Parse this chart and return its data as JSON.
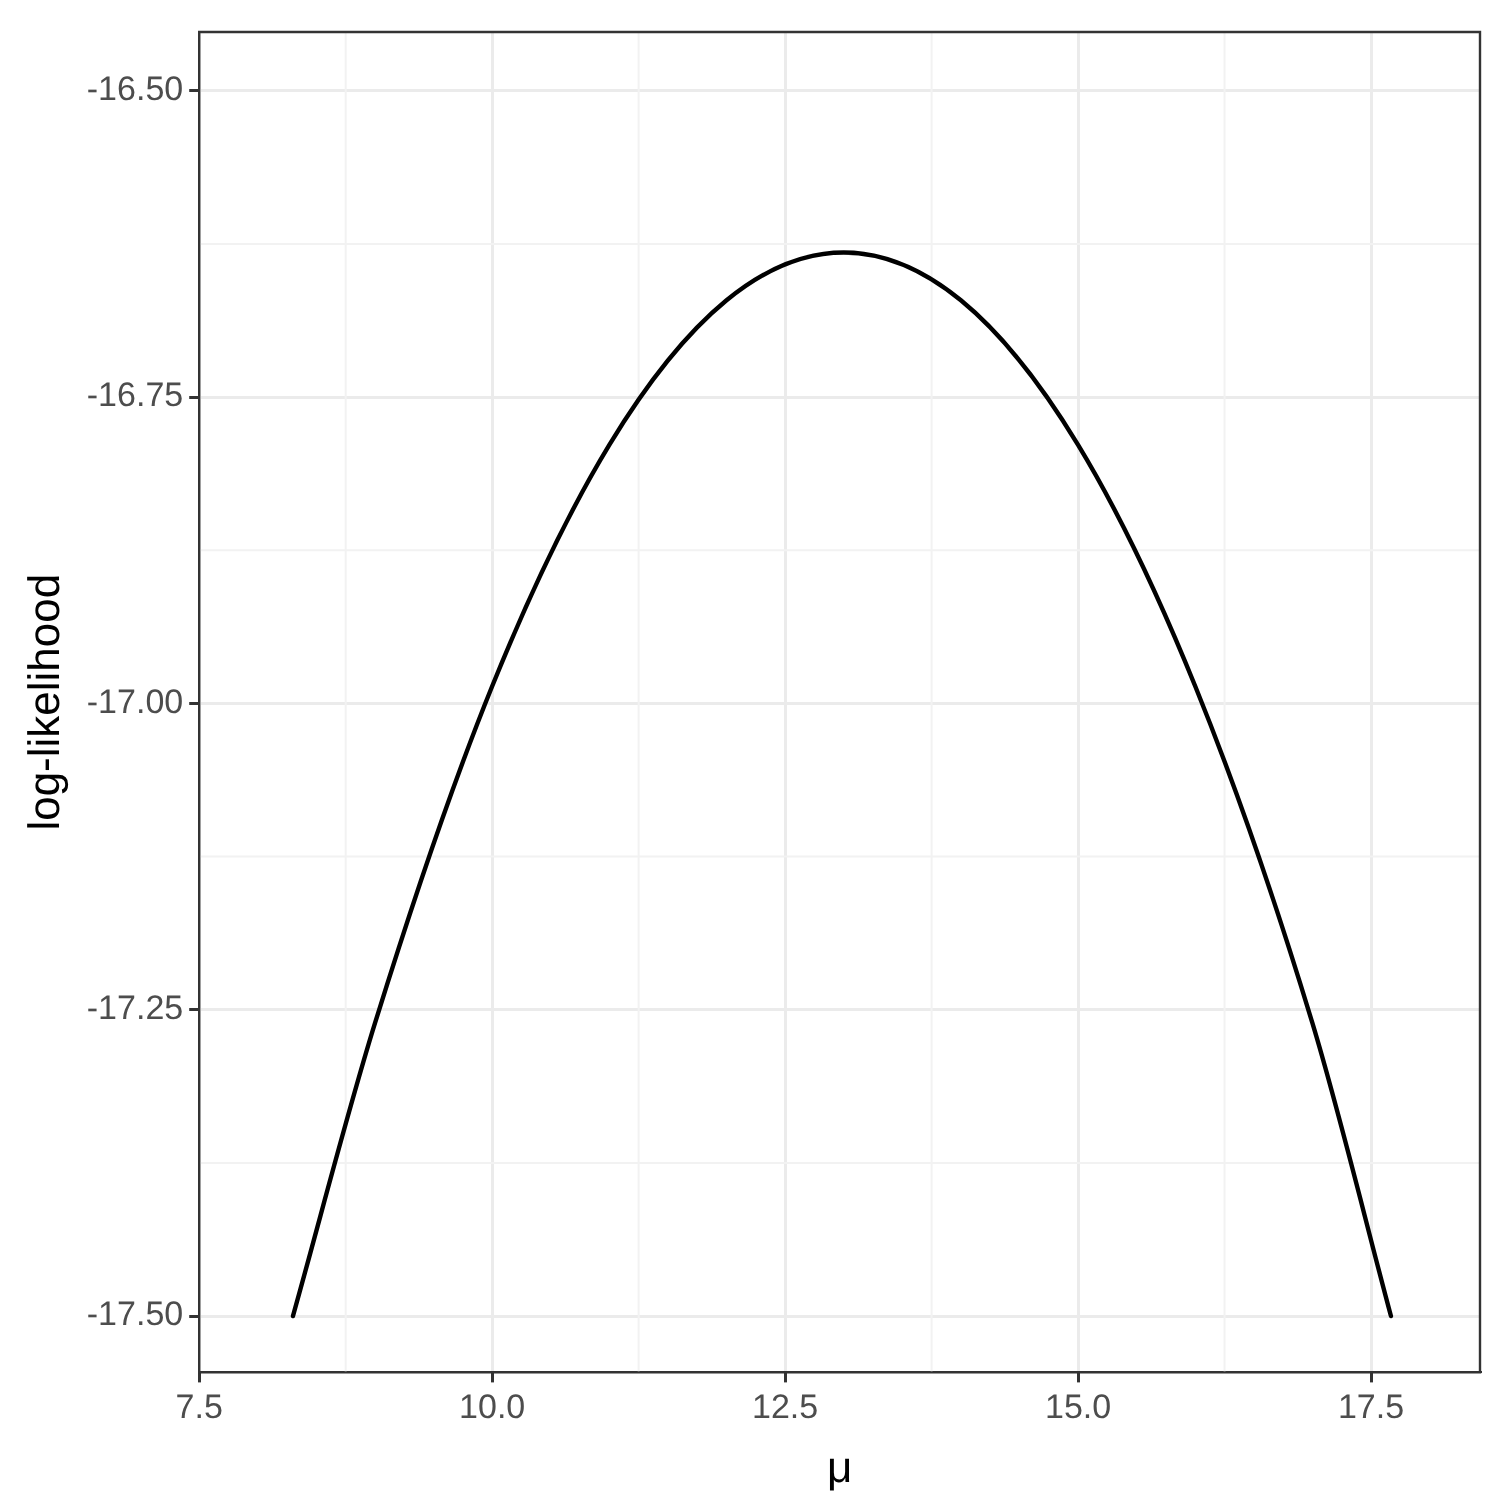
{
  "chart_data": {
    "type": "line",
    "xlabel": "μ",
    "ylabel": "log-likelihood",
    "x": [
      8.3,
      9,
      10,
      11,
      12,
      13,
      14,
      15,
      16,
      17,
      17.67
    ],
    "series": [
      {
        "color": "#000000",
        "values": [
          -17.5,
          -17.261,
          -16.986,
          -16.789,
          -16.671,
          -16.632,
          -16.671,
          -16.789,
          -16.986,
          -17.261,
          -17.5
        ]
      }
    ],
    "xlim": [
      7.5,
      18.43
    ],
    "ylim": [
      -17.546,
      -16.452
    ],
    "xticks": [
      {
        "value": 7.5,
        "label": "7.5"
      },
      {
        "value": 10,
        "label": "10.0"
      },
      {
        "value": 12.5,
        "label": "12.5"
      },
      {
        "value": 15,
        "label": "15.0"
      },
      {
        "value": 17.5,
        "label": "17.5"
      }
    ],
    "yticks": [
      {
        "value": -17.5,
        "label": "-17.50"
      },
      {
        "value": -17.25,
        "label": "-17.25"
      },
      {
        "value": -17,
        "label": "-17.00"
      },
      {
        "value": -16.75,
        "label": "-16.75"
      },
      {
        "value": -16.5,
        "label": "-16.50"
      }
    ],
    "grid": true,
    "legend": false,
    "marker": "none",
    "line_style": "solid"
  }
}
